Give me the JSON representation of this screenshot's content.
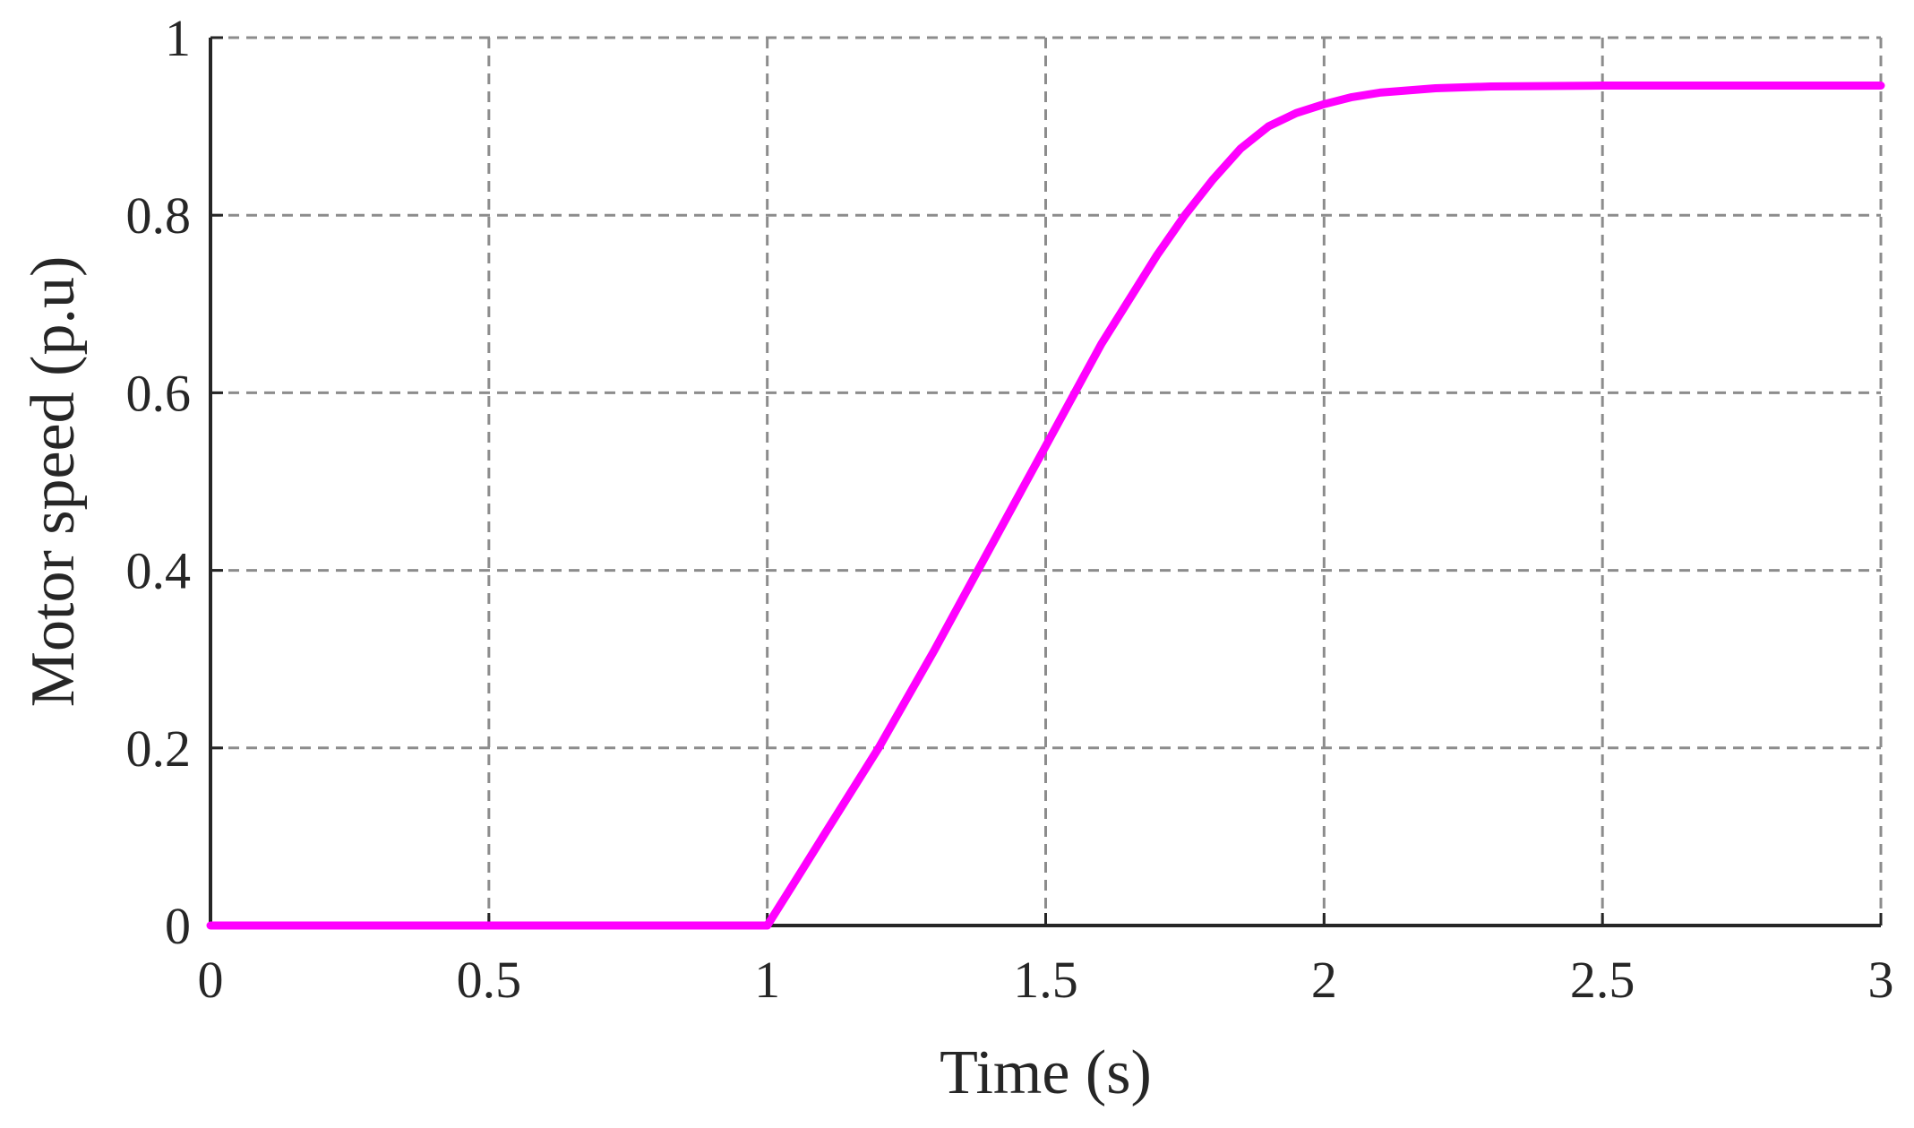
{
  "chart_data": {
    "type": "line",
    "title": "",
    "xlabel": "Time (s)",
    "ylabel": "Motor speed (p.u)",
    "xlim": [
      0,
      3
    ],
    "ylim": [
      0,
      1
    ],
    "x_ticks": [
      0,
      0.5,
      1,
      1.5,
      2,
      2.5,
      3
    ],
    "x_tick_labels": [
      "0",
      "0.5",
      "1",
      "1.5",
      "2",
      "2.5",
      "3"
    ],
    "y_ticks": [
      0,
      0.2,
      0.4,
      0.6,
      0.8,
      1
    ],
    "y_tick_labels": [
      "0",
      "0.2",
      "0.4",
      "0.6",
      "0.8",
      "1"
    ],
    "grid": true,
    "legend": "none",
    "series": [
      {
        "color": "#ff00ff",
        "x": [
          0,
          0.5,
          1.0,
          1.05,
          1.1,
          1.2,
          1.3,
          1.4,
          1.5,
          1.6,
          1.7,
          1.75,
          1.8,
          1.85,
          1.9,
          1.95,
          2.0,
          2.05,
          2.1,
          2.2,
          2.3,
          2.5,
          2.75,
          3.0
        ],
        "y": [
          0,
          0,
          0,
          0.05,
          0.1,
          0.2,
          0.31,
          0.425,
          0.54,
          0.655,
          0.755,
          0.8,
          0.84,
          0.875,
          0.9,
          0.915,
          0.925,
          0.933,
          0.938,
          0.943,
          0.945,
          0.946,
          0.946,
          0.946
        ]
      }
    ]
  }
}
